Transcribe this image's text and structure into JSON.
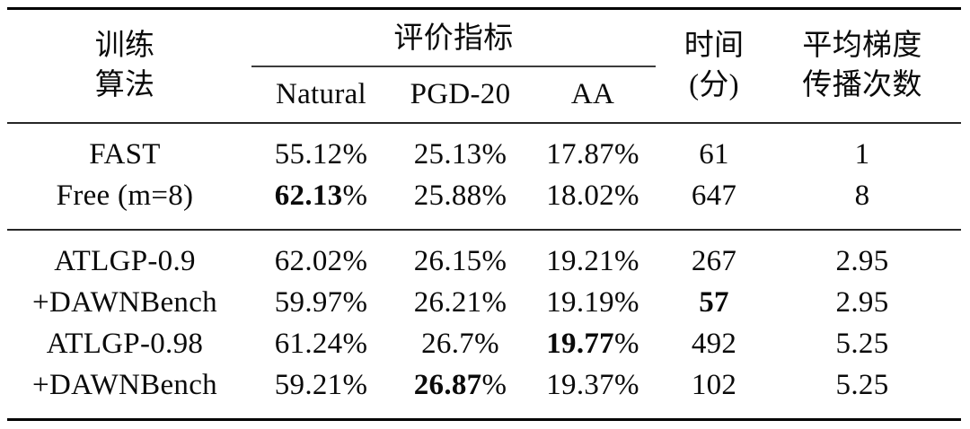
{
  "colors": {
    "background": "#ffffff",
    "text": "#0a0a0a",
    "rule_heavy": "#000000",
    "rule_light": "#262626"
  },
  "table": {
    "header": {
      "algo": [
        "训练",
        "算法"
      ],
      "metrics_group": "评价指标",
      "metrics_cols": [
        "Natural",
        "PGD-20",
        "AA"
      ],
      "time": [
        "时间",
        "(分)"
      ],
      "grad": [
        "平均梯度",
        "传播次数"
      ]
    },
    "groups": [
      {
        "rows": [
          {
            "algo": "FAST",
            "cells": [
              {
                "v": "55.12",
                "s": "%",
                "b": false
              },
              {
                "v": "25.13",
                "s": "%",
                "b": false
              },
              {
                "v": "17.87",
                "s": "%",
                "b": false
              },
              {
                "v": "61",
                "s": "",
                "b": false
              },
              {
                "v": "1",
                "s": "",
                "b": false
              }
            ]
          },
          {
            "algo": "Free (m=8)",
            "cells": [
              {
                "v": "62.13",
                "s": "%",
                "b": true
              },
              {
                "v": "25.88",
                "s": "%",
                "b": false
              },
              {
                "v": "18.02",
                "s": "%",
                "b": false
              },
              {
                "v": "647",
                "s": "",
                "b": false
              },
              {
                "v": "8",
                "s": "",
                "b": false
              }
            ]
          }
        ]
      },
      {
        "rows": [
          {
            "algo": "ATLGP-0.9",
            "cells": [
              {
                "v": "62.02",
                "s": "%",
                "b": false
              },
              {
                "v": "26.15",
                "s": "%",
                "b": false
              },
              {
                "v": "19.21",
                "s": "%",
                "b": false
              },
              {
                "v": "267",
                "s": "",
                "b": false
              },
              {
                "v": "2.95",
                "s": "",
                "b": false
              }
            ]
          },
          {
            "algo": "+DAWNBench",
            "cells": [
              {
                "v": "59.97",
                "s": "%",
                "b": false
              },
              {
                "v": "26.21",
                "s": "%",
                "b": false
              },
              {
                "v": "19.19",
                "s": "%",
                "b": false
              },
              {
                "v": "57",
                "s": "",
                "b": true
              },
              {
                "v": "2.95",
                "s": "",
                "b": false
              }
            ]
          },
          {
            "algo": "ATLGP-0.98",
            "cells": [
              {
                "v": "61.24",
                "s": "%",
                "b": false
              },
              {
                "v": "26.7",
                "s": "%",
                "b": false
              },
              {
                "v": "19.77",
                "s": "%",
                "b": true
              },
              {
                "v": "492",
                "s": "",
                "b": false
              },
              {
                "v": "5.25",
                "s": "",
                "b": false
              }
            ]
          },
          {
            "algo": "+DAWNBench",
            "cells": [
              {
                "v": "59.21",
                "s": "%",
                "b": false
              },
              {
                "v": "26.87",
                "s": "%",
                "b": true
              },
              {
                "v": "19.37",
                "s": "%",
                "b": false
              },
              {
                "v": "102",
                "s": "",
                "b": false
              },
              {
                "v": "5.25",
                "s": "",
                "b": false
              }
            ]
          }
        ]
      }
    ]
  }
}
